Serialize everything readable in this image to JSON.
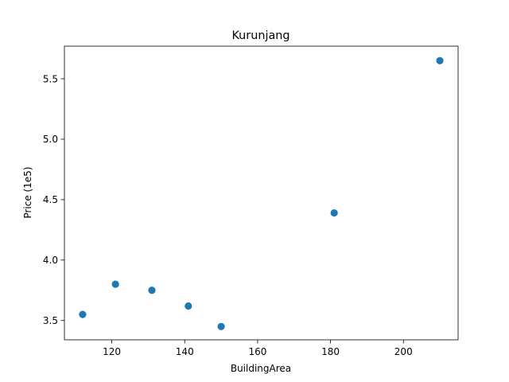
{
  "chart_data": {
    "type": "scatter",
    "title": "Kurunjang",
    "xlabel": "BuildingArea",
    "ylabel": "Price (1e5)",
    "xlim": [
      107,
      215
    ],
    "ylim": [
      3.34,
      5.77
    ],
    "xticks": [
      120,
      140,
      160,
      180,
      200
    ],
    "yticks": [
      3.5,
      4.0,
      4.5,
      5.0,
      5.5
    ],
    "xtick_labels": [
      "120",
      "140",
      "160",
      "180",
      "200"
    ],
    "ytick_labels": [
      "3.5",
      "4.0",
      "4.5",
      "5.0",
      "5.5"
    ],
    "grid": false,
    "marker_color": "#1f77b4",
    "points": [
      {
        "x": 112,
        "y": 3.55
      },
      {
        "x": 121,
        "y": 3.8
      },
      {
        "x": 131,
        "y": 3.75
      },
      {
        "x": 141,
        "y": 3.62
      },
      {
        "x": 150,
        "y": 3.45
      },
      {
        "x": 181,
        "y": 4.39
      },
      {
        "x": 210,
        "y": 5.65
      }
    ]
  }
}
